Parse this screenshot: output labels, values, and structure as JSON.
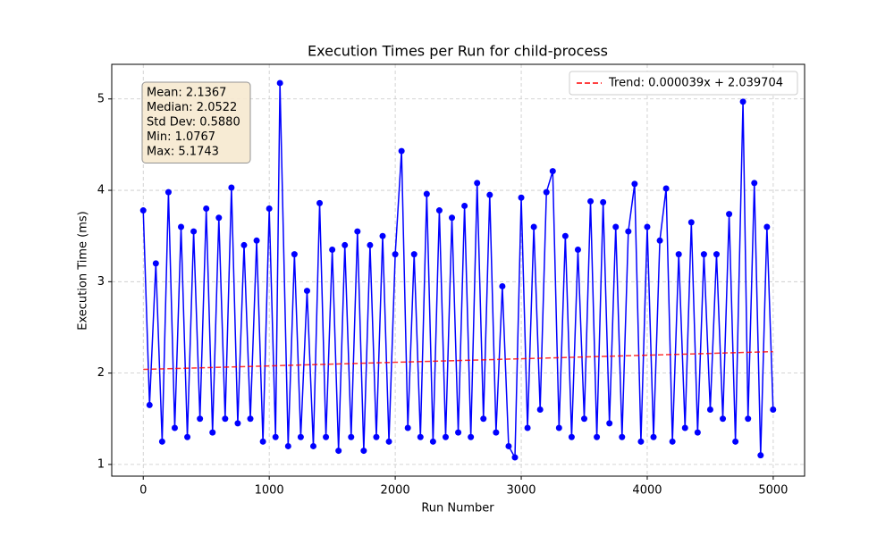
{
  "chart_data": {
    "type": "line",
    "title": "Execution Times per Run for child-process",
    "xlabel": "Run Number",
    "ylabel": "Execution Time (ms)",
    "x": [
      0,
      50,
      100,
      150,
      200,
      250,
      300,
      350,
      400,
      450,
      500,
      550,
      600,
      650,
      700,
      750,
      800,
      850,
      900,
      950,
      1000,
      1050,
      1085,
      1150,
      1200,
      1250,
      1300,
      1350,
      1400,
      1450,
      1500,
      1550,
      1600,
      1650,
      1700,
      1750,
      1800,
      1850,
      1900,
      1950,
      2000,
      2050,
      2100,
      2150,
      2200,
      2250,
      2300,
      2350,
      2400,
      2450,
      2500,
      2550,
      2600,
      2650,
      2700,
      2750,
      2800,
      2850,
      2900,
      2950,
      3000,
      3050,
      3100,
      3150,
      3200,
      3250,
      3300,
      3350,
      3400,
      3450,
      3500,
      3550,
      3600,
      3650,
      3700,
      3750,
      3800,
      3850,
      3900,
      3950,
      4000,
      4050,
      4100,
      4150,
      4200,
      4250,
      4300,
      4350,
      4400,
      4450,
      4500,
      4550,
      4600,
      4650,
      4700,
      4760,
      4800,
      4850,
      4900,
      4950,
      4999
    ],
    "series": [
      {
        "name": "Execution Time",
        "color": "#0000ff",
        "marker": true,
        "values": [
          3.78,
          1.65,
          3.2,
          1.25,
          3.98,
          1.4,
          3.6,
          1.3,
          3.55,
          1.5,
          3.8,
          1.35,
          3.7,
          1.5,
          4.03,
          1.45,
          3.4,
          1.5,
          3.45,
          1.25,
          3.8,
          1.3,
          5.1743,
          1.2,
          3.3,
          1.3,
          2.9,
          1.2,
          3.86,
          1.3,
          3.35,
          1.15,
          3.4,
          1.3,
          3.55,
          1.15,
          3.4,
          1.3,
          3.5,
          1.25,
          3.3,
          4.43,
          1.4,
          3.3,
          1.3,
          3.96,
          1.25,
          3.78,
          1.3,
          3.7,
          1.35,
          3.83,
          1.3,
          4.08,
          1.5,
          3.95,
          1.35,
          2.95,
          1.2,
          1.0767,
          3.92,
          1.4,
          3.6,
          1.6,
          3.98,
          4.21,
          1.4,
          3.5,
          1.3,
          3.35,
          1.5,
          3.88,
          1.3,
          3.87,
          1.45,
          3.6,
          1.3,
          3.55,
          4.07,
          1.25,
          3.6,
          1.3,
          3.45,
          4.02,
          1.25,
          3.3,
          1.4,
          3.65,
          1.35,
          3.3,
          1.6,
          3.3,
          1.5,
          3.74,
          1.25,
          4.97,
          1.5,
          4.08,
          1.1,
          3.6,
          1.6
        ]
      },
      {
        "name": "Trend: 0.000039x + 2.039704",
        "color": "#ff0000",
        "dashed": true,
        "x": [
          0,
          4999
        ],
        "values": [
          2.0397,
          2.2347
        ]
      }
    ],
    "annotations": [
      "Mean: 2.1367",
      "Median: 2.0522",
      "Std Dev: 0.5880",
      "Min: 1.0767",
      "Max: 5.1743"
    ],
    "xlim": [
      -250,
      5249
    ],
    "ylim": [
      0.872,
      5.379
    ],
    "xticks": [
      0,
      1000,
      2000,
      3000,
      4000,
      5000
    ],
    "yticks": [
      1,
      2,
      3,
      4,
      5
    ],
    "grid": true,
    "legend": "upper right"
  }
}
